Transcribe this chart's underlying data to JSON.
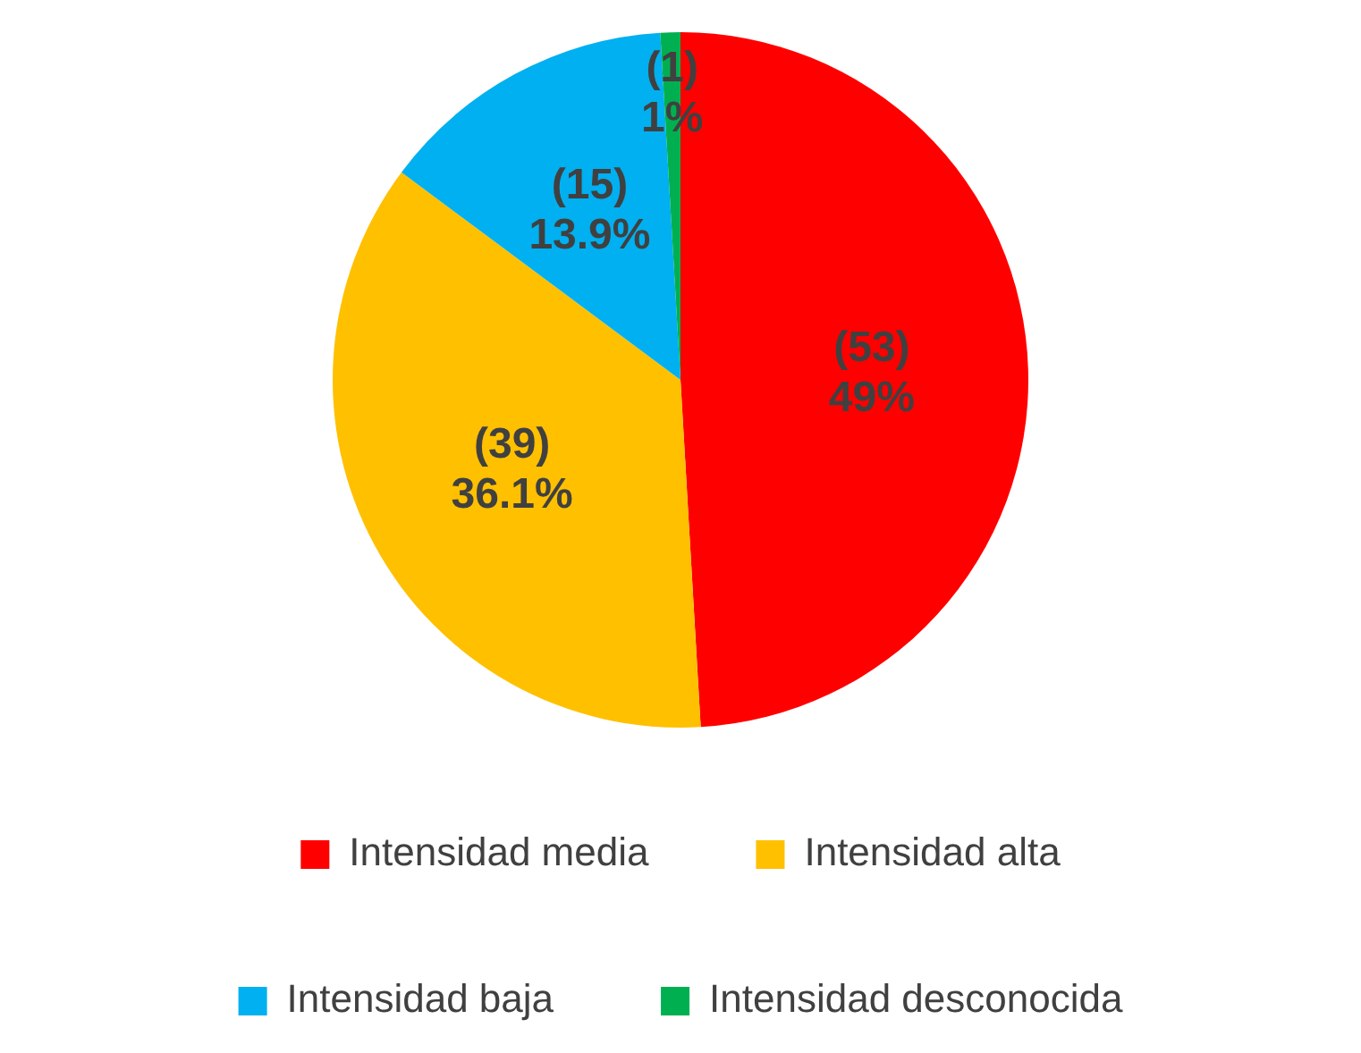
{
  "chart_data": {
    "type": "pie",
    "categories": [
      "Intensidad media",
      "Intensidad alta",
      "Intensidad baja",
      "Intensidad desconocida"
    ],
    "values": [
      53,
      39,
      15,
      1
    ],
    "colors": [
      "#ff0000",
      "#ffc000",
      "#00b0f0",
      "#00b050"
    ],
    "value_labels": [
      "(53)\n49%",
      "(39)\n36.1%",
      "(15)\n13.9%",
      "(1)\n1%"
    ],
    "legend": "bottom"
  }
}
